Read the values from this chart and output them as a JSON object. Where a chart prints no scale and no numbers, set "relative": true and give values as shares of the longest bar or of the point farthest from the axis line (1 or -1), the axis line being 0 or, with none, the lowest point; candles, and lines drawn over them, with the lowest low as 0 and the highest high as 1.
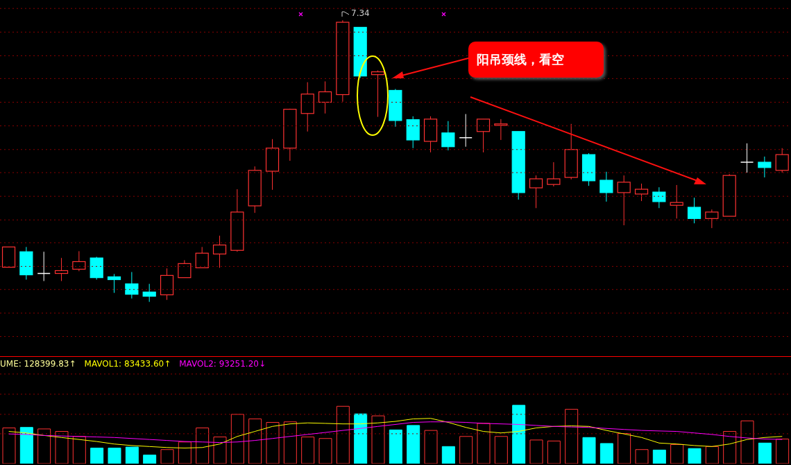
{
  "chart_data": [
    {
      "type": "candlestick",
      "relative": true,
      "tick_labels": false,
      "ref_lines": [
        {
          "axis": "y",
          "value": -0.123,
          "color": "#8b0000",
          "line_style": "dotted"
        },
        {
          "axis": "y",
          "value": -0.04,
          "color": "#8b0000",
          "line_style": "dotted"
        },
        {
          "axis": "y",
          "value": 0.044,
          "color": "#8b0000",
          "line_style": "dotted"
        },
        {
          "axis": "y",
          "value": 0.126,
          "color": "#8b0000",
          "line_style": "dotted"
        },
        {
          "axis": "y",
          "value": 0.21,
          "color": "#8b0000",
          "line_style": "dotted"
        },
        {
          "axis": "y",
          "value": 0.291,
          "color": "#8b0000",
          "line_style": "dotted"
        },
        {
          "axis": "y",
          "value": 0.375,
          "color": "#8b0000",
          "line_style": "dotted"
        },
        {
          "axis": "y",
          "value": 0.459,
          "color": "#8b0000",
          "line_style": "dotted"
        },
        {
          "axis": "y",
          "value": 0.541,
          "color": "#8b0000",
          "line_style": "dotted"
        },
        {
          "axis": "y",
          "value": 0.625,
          "color": "#8b0000",
          "line_style": "dotted"
        },
        {
          "axis": "y",
          "value": 0.709,
          "color": "#8b0000",
          "line_style": "dotted"
        },
        {
          "axis": "y",
          "value": 0.793,
          "color": "#8b0000",
          "line_style": "dotted"
        },
        {
          "axis": "y",
          "value": 0.874,
          "color": "#8b0000",
          "line_style": "dotted"
        },
        {
          "axis": "y",
          "value": 0.958,
          "color": "#8b0000",
          "line_style": "dotted"
        },
        {
          "axis": "y",
          "value": 1.042,
          "color": "#8b0000",
          "line_style": "dotted"
        }
      ],
      "categories": [
        null,
        null,
        null,
        null,
        null,
        null,
        null,
        null,
        null,
        null,
        null,
        null,
        null,
        null,
        null,
        null,
        null,
        null,
        null,
        null,
        null,
        null,
        null,
        null,
        null,
        null,
        null,
        null,
        null,
        null,
        null,
        null,
        null,
        null,
        null,
        null,
        null,
        null,
        null,
        null,
        null,
        null,
        null,
        null,
        null
      ],
      "ohlc": [
        [
          0.123,
          0.195,
          0.123,
          0.195
        ],
        [
          0.178,
          0.195,
          0.079,
          0.096
        ],
        [
          0.101,
          0.178,
          0.074,
          0.101
        ],
        [
          0.101,
          0.156,
          0.074,
          0.111
        ],
        [
          0.116,
          0.18,
          0.109,
          0.143
        ],
        [
          0.156,
          0.16,
          0.079,
          0.086
        ],
        [
          0.089,
          0.099,
          0.032,
          0.079
        ],
        [
          0.064,
          0.106,
          0.012,
          0.027
        ],
        [
          0.035,
          0.064,
          0,
          0.02
        ],
        [
          0.025,
          0.119,
          0.007,
          0.094
        ],
        [
          0.086,
          0.148,
          0.086,
          0.136
        ],
        [
          0.121,
          0.195,
          0.121,
          0.173
        ],
        [
          0.17,
          0.235,
          0.121,
          0.202
        ],
        [
          0.183,
          0.4,
          0.178,
          0.319
        ],
        [
          0.341,
          0.481,
          0.316,
          0.467
        ],
        [
          0.464,
          0.578,
          0.398,
          0.546
        ],
        [
          0.546,
          0.686,
          0.501,
          0.684
        ],
        [
          0.669,
          0.78,
          0.605,
          0.738
        ],
        [
          0.709,
          0.783,
          0.669,
          0.746
        ],
        [
          0.736,
          1,
          0.711,
          0.993
        ],
        [
          0.975,
          0.975,
          0.795,
          0.802
        ],
        [
          0.807,
          0.822,
          0.657,
          0.817
        ],
        [
          0.751,
          0.756,
          0.622,
          0.644
        ],
        [
          0.647,
          0.659,
          0.546,
          0.575
        ],
        [
          0.57,
          0.659,
          0.531,
          0.649
        ],
        [
          0.6,
          0.642,
          0.538,
          0.551
        ],
        [
          0.583,
          0.667,
          0.551,
          0.583
        ],
        [
          0.605,
          0.649,
          0.531,
          0.649
        ],
        [
          0.627,
          0.649,
          0.575,
          0.632
        ],
        [
          0.605,
          0.605,
          0.363,
          0.388
        ],
        [
          0.405,
          0.449,
          0.333,
          0.437
        ],
        [
          0.417,
          0.496,
          0.41,
          0.437
        ],
        [
          0.442,
          0.632,
          0.435,
          0.541
        ],
        [
          0.523,
          0.528,
          0.412,
          0.43
        ],
        [
          0.432,
          0.462,
          0.356,
          0.388
        ],
        [
          0.388,
          0.449,
          0.272,
          0.425
        ],
        [
          0.383,
          0.42,
          0.358,
          0.4
        ],
        [
          0.39,
          0.407,
          0.333,
          0.356
        ],
        [
          0.343,
          0.415,
          0.296,
          0.353
        ],
        [
          0.336,
          0.37,
          0.279,
          0.296
        ],
        [
          0.296,
          0.328,
          0.262,
          0.319
        ],
        [
          0.304,
          0.454,
          0.304,
          0.449
        ],
        [
          0.496,
          0.563,
          0.459,
          0.496
        ],
        [
          0.496,
          0.516,
          0.442,
          0.477
        ],
        [
          0.467,
          0.546,
          0.459,
          0.523
        ]
      ],
      "colors": [
        "#ff3232",
        "#00ffff",
        "#ffffff",
        "#ff3232",
        "#ff3232",
        "#00ffff",
        "#00ffff",
        "#00ffff",
        "#00ffff",
        "#ff3232",
        "#ff3232",
        "#ff3232",
        "#ff3232",
        "#ff3232",
        "#ff3232",
        "#ff3232",
        "#ff3232",
        "#ff3232",
        "#ff3232",
        "#ff3232",
        "#00ffff",
        "#ff3232",
        "#00ffff",
        "#00ffff",
        "#ff3232",
        "#00ffff",
        "#ffffff",
        "#ff3232",
        "#ff3232",
        "#00ffff",
        "#ff3232",
        "#ff3232",
        "#ff3232",
        "#00ffff",
        "#00ffff",
        "#ff3232",
        "#ff3232",
        "#00ffff",
        "#ff3232",
        "#00ffff",
        "#ff3232",
        "#ff3232",
        "#ffffff",
        "#00ffff",
        "#ff3232"
      ],
      "annotations": [
        "阳吊颈线，看空",
        "7.34"
      ]
    },
    {
      "type": "bar",
      "relative": true,
      "tick_labels": false,
      "legend": "top left",
      "annotations": [
        "UME: 128399.83↑"
      ],
      "ref_lines": [
        {
          "axis": "y",
          "value": 0.512,
          "color": "#8b0000",
          "line_style": "dotted"
        },
        {
          "axis": "y",
          "value": 0.845,
          "color": "#8b0000",
          "line_style": "dotted"
        },
        {
          "axis": "y",
          "value": 1.19,
          "color": "#8b0000",
          "line_style": "dotted"
        },
        {
          "axis": "y",
          "value": 1.536,
          "color": "#8b0000",
          "line_style": "dotted"
        }
      ],
      "categories": [
        null,
        null,
        null,
        null,
        null,
        null,
        null,
        null,
        null,
        null,
        null,
        null,
        null,
        null,
        null,
        null,
        null,
        null,
        null,
        null,
        null,
        null,
        null,
        null,
        null,
        null,
        null,
        null,
        null,
        null,
        null,
        null,
        null,
        null,
        null,
        null,
        null,
        null,
        null,
        null,
        null,
        null,
        null,
        null,
        null
      ],
      "series": [
        {
          "type": "bar",
          "colors": [
            "#ff3232",
            "#00ffff",
            "#ff3232",
            "#ff3232",
            "#ff3232",
            "#00ffff",
            "#00ffff",
            "#00ffff",
            "#00ffff",
            "#ff3232",
            "#ff3232",
            "#ff3232",
            "#ff3232",
            "#ff3232",
            "#ff3232",
            "#ff3232",
            "#ff3232",
            "#ff3232",
            "#ff3232",
            "#ff3232",
            "#00ffff",
            "#ff3232",
            "#00ffff",
            "#00ffff",
            "#ff3232",
            "#00ffff",
            "#ff3232",
            "#ff3232",
            "#ff3232",
            "#00ffff",
            "#ff3232",
            "#ff3232",
            "#ff3232",
            "#00ffff",
            "#00ffff",
            "#ff3232",
            "#ff3232",
            "#00ffff",
            "#ff3232",
            "#00ffff",
            "#ff3232",
            "#ff3232",
            "#ff3232",
            "#00ffff",
            "#ff3232"
          ],
          "values": [
            0.612,
            0.621,
            0.595,
            0.552,
            0.466,
            0.267,
            0.267,
            0.284,
            0.147,
            0.241,
            0.371,
            0.612,
            0.457,
            0.845,
            0.767,
            0.707,
            0.716,
            0.457,
            0.431,
            0.983,
            0.853,
            0.819,
            0.578,
            0.655,
            0.569,
            0.293,
            0.466,
            0.69,
            0.466,
            1,
            0.405,
            0.388,
            0.931,
            0.448,
            0.345,
            0.517,
            0.241,
            0.233,
            0.328,
            0.259,
            0.293,
            0.552,
            0.733,
            0.353,
            0.422
          ]
        },
        {
          "name": "MAVOL1: 83433.60↑",
          "type": "line",
          "color": "#ffff00",
          "values": [
            0.552,
            0.526,
            0.483,
            0.448,
            0.414,
            0.379,
            0.336,
            0.31,
            0.293,
            0.276,
            0.267,
            0.276,
            0.336,
            0.466,
            0.552,
            0.638,
            0.681,
            0.698,
            0.69,
            0.681,
            0.681,
            0.698,
            0.724,
            0.767,
            0.776,
            0.707,
            0.621,
            0.552,
            0.526,
            0.552,
            0.612,
            0.638,
            0.647,
            0.638,
            0.569,
            0.509,
            0.448,
            0.353,
            0.336,
            0.31,
            0.293,
            0.336,
            0.414,
            0.448,
            0.466
          ]
        },
        {
          "name": "MAVOL2: 93251.20↓",
          "type": "line",
          "color": "#ff00ff",
          "values": [
            0.509,
            0.5,
            0.483,
            0.474,
            0.466,
            0.457,
            0.448,
            0.431,
            0.414,
            0.397,
            0.379,
            0.371,
            0.362,
            0.371,
            0.397,
            0.431,
            0.466,
            0.5,
            0.534,
            0.569,
            0.603,
            0.638,
            0.672,
            0.707,
            0.716,
            0.716,
            0.707,
            0.69,
            0.681,
            0.672,
            0.655,
            0.638,
            0.629,
            0.621,
            0.603,
            0.586,
            0.569,
            0.56,
            0.552,
            0.526,
            0.5,
            0.466,
            0.44,
            0.422,
            0.414
          ]
        }
      ]
    }
  ]
}
